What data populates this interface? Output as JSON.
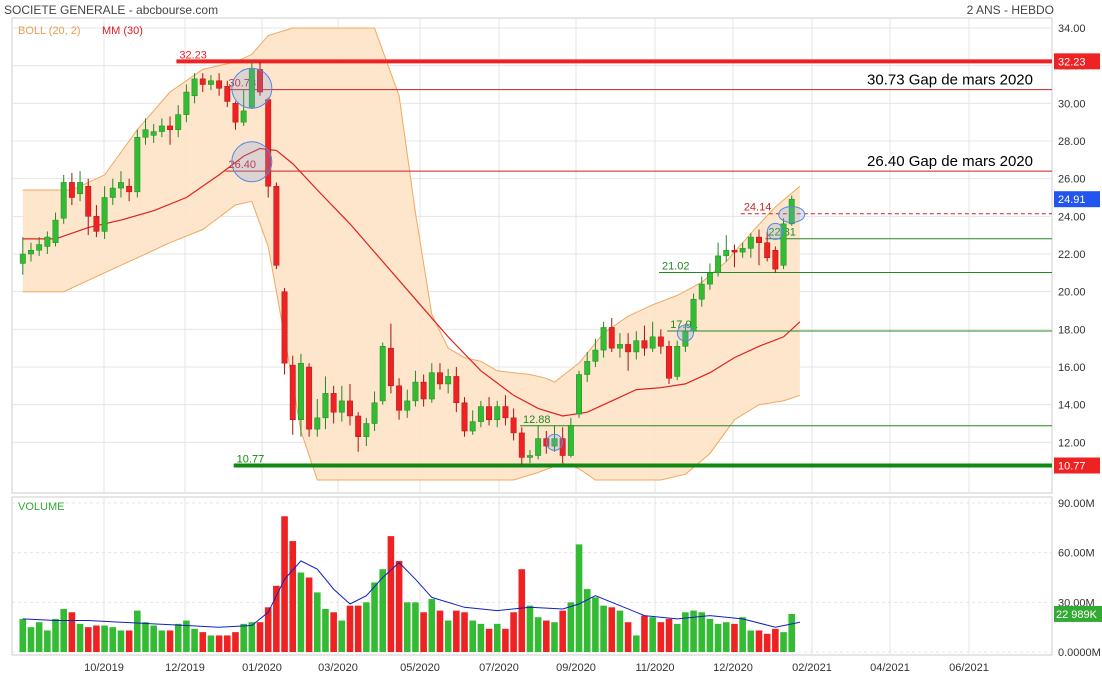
{
  "header": {
    "title": "SOCIETE GENERALE - abcbourse.com",
    "period": "2 ANS - HEBDO"
  },
  "legend": {
    "boll": "BOLL (20, 2)",
    "mm": "MM (30)",
    "volume": "VOLUME"
  },
  "colors": {
    "up": "#33bb33",
    "down": "#ee2222",
    "ma": "#e02020",
    "band_fill": "#fde3c6",
    "band_line": "#f0a860",
    "volume_ma": "#1020c0",
    "price_tag": "#2255ee"
  },
  "chart_data": {
    "type": "candlestick",
    "x_labels": [
      "10/2019",
      "12/2019",
      "01/2020",
      "03/2020",
      "05/2020",
      "07/2020",
      "09/2020",
      "11/2020",
      "12/2020",
      "02/2021",
      "04/2021",
      "06/2021"
    ],
    "price_axis": {
      "ticks": [
        "34.00",
        "32.00",
        "30.00",
        "28.00",
        "26.00",
        "24.00",
        "22.00",
        "20.00",
        "18.00",
        "16.00",
        "14.00",
        "12.00"
      ],
      "tick_values": [
        34,
        32,
        30,
        28,
        26,
        24,
        22,
        20,
        18,
        16,
        14,
        12
      ],
      "range": [
        10,
        34
      ]
    },
    "volume_axis": {
      "ticks": [
        "90.00M",
        "60.00M",
        "30.00M",
        "0.0000M"
      ],
      "tick_values": [
        90,
        60,
        30,
        0
      ],
      "range": [
        0,
        90
      ]
    },
    "last_price": "24.91",
    "last_volume": "22 989K",
    "price_tags": [
      {
        "label": "32.23",
        "value": 32.23,
        "color": "#ee2222"
      },
      {
        "label": "10.77",
        "value": 10.77,
        "color": "#ee2222"
      }
    ],
    "levels": [
      {
        "label": "32.23",
        "value": 32.23,
        "color": "#ee2222",
        "thick": true,
        "label_week": 20
      },
      {
        "label": "30.73",
        "value": 30.73,
        "color": "#cc2222",
        "thick": false,
        "label_week": 26,
        "annotation": "30.73 Gap de mars 2020"
      },
      {
        "label": "26.40",
        "value": 26.4,
        "color": "#cc2222",
        "thick": false,
        "label_week": 26,
        "annotation": "26.40 Gap de mars 2020"
      },
      {
        "label": "24.14",
        "value": 24.14,
        "color": "#cc2222",
        "thick": false,
        "dashed": true,
        "label_week": 89
      },
      {
        "label": "22.81",
        "value": 22.81,
        "color": "#228822",
        "thick": false,
        "label_week": 92
      },
      {
        "label": "21.02",
        "value": 21.02,
        "color": "#228822",
        "thick": false,
        "label_week": 79
      },
      {
        "label": "17.91",
        "value": 17.91,
        "color": "#228822",
        "thick": false,
        "label_week": 80
      },
      {
        "label": "12.88",
        "value": 12.88,
        "color": "#228822",
        "thick": false,
        "label_week": 62
      },
      {
        "label": "10.77",
        "value": 10.77,
        "color": "#118811",
        "thick": true,
        "label_week": 27
      }
    ],
    "circles": [
      {
        "week": 28,
        "price": 30.8
      },
      {
        "week": 28,
        "price": 26.9
      },
      {
        "week": 65,
        "price": 12.0
      },
      {
        "week": 81,
        "price": 17.8
      },
      {
        "week": 92,
        "price": 23.2
      },
      {
        "week": 94,
        "price": 24.1
      }
    ],
    "candles": [
      {
        "o": 21.5,
        "c": 22.0,
        "h": 22.9,
        "l": 20.9,
        "v": 20
      },
      {
        "o": 22.0,
        "c": 22.2,
        "h": 22.6,
        "l": 21.6,
        "v": 15
      },
      {
        "o": 22.2,
        "c": 22.5,
        "h": 22.9,
        "l": 21.9,
        "v": 18
      },
      {
        "o": 22.4,
        "c": 22.9,
        "h": 23.2,
        "l": 22.0,
        "v": 13
      },
      {
        "o": 22.6,
        "c": 23.8,
        "h": 24.2,
        "l": 22.4,
        "v": 20
      },
      {
        "o": 23.9,
        "c": 25.8,
        "h": 26.2,
        "l": 23.6,
        "v": 26
      },
      {
        "o": 25.8,
        "c": 25.0,
        "h": 26.3,
        "l": 24.6,
        "v": 24
      },
      {
        "o": 25.2,
        "c": 25.8,
        "h": 26.4,
        "l": 24.8,
        "v": 17
      },
      {
        "o": 25.6,
        "c": 24.0,
        "h": 26.0,
        "l": 23.0,
        "v": 15
      },
      {
        "o": 24.0,
        "c": 23.2,
        "h": 24.6,
        "l": 22.9,
        "v": 16
      },
      {
        "o": 23.2,
        "c": 25.0,
        "h": 25.6,
        "l": 22.8,
        "v": 16
      },
      {
        "o": 25.0,
        "c": 25.5,
        "h": 26.0,
        "l": 24.6,
        "v": 15
      },
      {
        "o": 25.5,
        "c": 25.8,
        "h": 26.4,
        "l": 25.0,
        "v": 13
      },
      {
        "o": 25.6,
        "c": 25.3,
        "h": 26.0,
        "l": 24.8,
        "v": 13
      },
      {
        "o": 25.3,
        "c": 28.2,
        "h": 28.6,
        "l": 25.0,
        "v": 25
      },
      {
        "o": 28.2,
        "c": 28.6,
        "h": 29.2,
        "l": 27.8,
        "v": 18
      },
      {
        "o": 28.3,
        "c": 28.5,
        "h": 28.9,
        "l": 27.9,
        "v": 16
      },
      {
        "o": 28.5,
        "c": 28.8,
        "h": 29.2,
        "l": 28.2,
        "v": 13
      },
      {
        "o": 28.8,
        "c": 28.6,
        "h": 29.3,
        "l": 27.8,
        "v": 13
      },
      {
        "o": 28.6,
        "c": 29.4,
        "h": 29.9,
        "l": 28.2,
        "v": 17
      },
      {
        "o": 29.4,
        "c": 30.6,
        "h": 31.0,
        "l": 29.0,
        "v": 19
      },
      {
        "o": 30.4,
        "c": 31.3,
        "h": 31.6,
        "l": 30.0,
        "v": 14
      },
      {
        "o": 31.3,
        "c": 31.0,
        "h": 31.6,
        "l": 30.6,
        "v": 12
      },
      {
        "o": 31.0,
        "c": 31.2,
        "h": 31.5,
        "l": 30.7,
        "v": 10
      },
      {
        "o": 31.2,
        "c": 30.8,
        "h": 31.6,
        "l": 30.4,
        "v": 10
      },
      {
        "o": 30.9,
        "c": 30.1,
        "h": 31.2,
        "l": 29.8,
        "v": 10
      },
      {
        "o": 30.0,
        "c": 29.0,
        "h": 30.1,
        "l": 28.6,
        "v": 12
      },
      {
        "o": 29.0,
        "c": 29.6,
        "h": 30.7,
        "l": 28.8,
        "v": 17
      },
      {
        "o": 29.8,
        "c": 31.8,
        "h": 32.2,
        "l": 29.7,
        "v": 18
      },
      {
        "o": 31.8,
        "c": 30.6,
        "h": 32.2,
        "l": 30.4,
        "v": 18
      },
      {
        "o": 30.2,
        "c": 25.6,
        "h": 30.3,
        "l": 25.0,
        "v": 27
      },
      {
        "o": 25.6,
        "c": 21.4,
        "h": 25.8,
        "l": 21.2,
        "v": 40
      },
      {
        "o": 20.0,
        "c": 16.2,
        "h": 20.2,
        "l": 15.6,
        "v": 82
      },
      {
        "o": 16.1,
        "c": 13.2,
        "h": 16.6,
        "l": 12.4,
        "v": 67
      },
      {
        "o": 13.2,
        "c": 16.2,
        "h": 16.7,
        "l": 12.3,
        "v": 48
      },
      {
        "o": 16.0,
        "c": 12.7,
        "h": 16.2,
        "l": 12.3,
        "v": 45
      },
      {
        "o": 12.7,
        "c": 13.3,
        "h": 14.3,
        "l": 12.3,
        "v": 36
      },
      {
        "o": 13.3,
        "c": 14.6,
        "h": 15.5,
        "l": 12.7,
        "v": 26
      },
      {
        "o": 14.6,
        "c": 13.6,
        "h": 15.0,
        "l": 13.0,
        "v": 24
      },
      {
        "o": 13.6,
        "c": 14.2,
        "h": 15.0,
        "l": 13.1,
        "v": 19
      },
      {
        "o": 14.2,
        "c": 13.4,
        "h": 15.1,
        "l": 12.9,
        "v": 28
      },
      {
        "o": 13.4,
        "c": 12.3,
        "h": 13.6,
        "l": 11.5,
        "v": 28
      },
      {
        "o": 12.3,
        "c": 13.0,
        "h": 13.3,
        "l": 11.8,
        "v": 30
      },
      {
        "o": 13.0,
        "c": 14.1,
        "h": 14.7,
        "l": 12.6,
        "v": 42
      },
      {
        "o": 14.2,
        "c": 17.1,
        "h": 17.3,
        "l": 14.0,
        "v": 50
      },
      {
        "o": 17.0,
        "c": 15.0,
        "h": 18.3,
        "l": 14.6,
        "v": 70
      },
      {
        "o": 15.0,
        "c": 13.7,
        "h": 15.4,
        "l": 13.2,
        "v": 55
      },
      {
        "o": 13.7,
        "c": 14.2,
        "h": 14.8,
        "l": 13.3,
        "v": 30
      },
      {
        "o": 14.2,
        "c": 15.2,
        "h": 15.8,
        "l": 13.9,
        "v": 30
      },
      {
        "o": 15.2,
        "c": 14.3,
        "h": 15.6,
        "l": 13.9,
        "v": 24
      },
      {
        "o": 14.3,
        "c": 15.7,
        "h": 16.2,
        "l": 14.1,
        "v": 32
      },
      {
        "o": 15.7,
        "c": 15.1,
        "h": 16.2,
        "l": 14.8,
        "v": 25
      },
      {
        "o": 15.1,
        "c": 15.5,
        "h": 15.9,
        "l": 14.6,
        "v": 19
      },
      {
        "o": 15.5,
        "c": 14.1,
        "h": 16.0,
        "l": 13.6,
        "v": 25
      },
      {
        "o": 14.1,
        "c": 12.6,
        "h": 14.4,
        "l": 12.3,
        "v": 24
      },
      {
        "o": 12.6,
        "c": 13.1,
        "h": 13.7,
        "l": 12.4,
        "v": 19
      },
      {
        "o": 13.1,
        "c": 13.9,
        "h": 14.2,
        "l": 12.8,
        "v": 17
      },
      {
        "o": 13.9,
        "c": 13.2,
        "h": 14.4,
        "l": 12.9,
        "v": 14
      },
      {
        "o": 13.2,
        "c": 13.9,
        "h": 14.2,
        "l": 12.8,
        "v": 17
      },
      {
        "o": 13.9,
        "c": 13.3,
        "h": 14.5,
        "l": 12.9,
        "v": 14
      },
      {
        "o": 13.3,
        "c": 12.5,
        "h": 13.8,
        "l": 12.1,
        "v": 24
      },
      {
        "o": 12.5,
        "c": 11.2,
        "h": 12.8,
        "l": 10.8,
        "v": 50
      },
      {
        "o": 11.2,
        "c": 11.3,
        "h": 11.6,
        "l": 10.9,
        "v": 28
      },
      {
        "o": 11.3,
        "c": 12.2,
        "h": 12.9,
        "l": 11.1,
        "v": 21
      },
      {
        "o": 12.2,
        "c": 11.8,
        "h": 12.6,
        "l": 11.4,
        "v": 19
      },
      {
        "o": 11.8,
        "c": 12.2,
        "h": 12.9,
        "l": 11.5,
        "v": 18
      },
      {
        "o": 12.2,
        "c": 11.3,
        "h": 12.8,
        "l": 10.9,
        "v": 25
      },
      {
        "o": 11.3,
        "c": 12.9,
        "h": 13.3,
        "l": 11.2,
        "v": 30
      },
      {
        "o": 13.5,
        "c": 15.6,
        "h": 15.8,
        "l": 13.3,
        "v": 65
      },
      {
        "o": 15.6,
        "c": 16.3,
        "h": 16.8,
        "l": 15.2,
        "v": 38
      },
      {
        "o": 16.3,
        "c": 16.9,
        "h": 17.5,
        "l": 16.0,
        "v": 33
      },
      {
        "o": 16.9,
        "c": 18.1,
        "h": 18.4,
        "l": 16.5,
        "v": 28
      },
      {
        "o": 18.1,
        "c": 17.0,
        "h": 18.6,
        "l": 16.8,
        "v": 27
      },
      {
        "o": 17.0,
        "c": 17.2,
        "h": 17.8,
        "l": 16.5,
        "v": 25
      },
      {
        "o": 17.2,
        "c": 16.8,
        "h": 17.8,
        "l": 15.8,
        "v": 18
      },
      {
        "o": 16.8,
        "c": 17.4,
        "h": 17.9,
        "l": 16.4,
        "v": 10
      },
      {
        "o": 17.4,
        "c": 17.0,
        "h": 18.2,
        "l": 16.6,
        "v": 22
      },
      {
        "o": 17.0,
        "c": 17.6,
        "h": 18.4,
        "l": 16.8,
        "v": 21
      },
      {
        "o": 17.6,
        "c": 17.1,
        "h": 18.0,
        "l": 16.7,
        "v": 18
      },
      {
        "o": 17.1,
        "c": 15.4,
        "h": 17.4,
        "l": 15.1,
        "v": 20
      },
      {
        "o": 15.5,
        "c": 17.1,
        "h": 17.4,
        "l": 15.3,
        "v": 17
      },
      {
        "o": 17.1,
        "c": 17.9,
        "h": 18.3,
        "l": 16.8,
        "v": 24
      },
      {
        "o": 17.9,
        "c": 19.6,
        "h": 19.9,
        "l": 17.8,
        "v": 25
      },
      {
        "o": 19.6,
        "c": 20.4,
        "h": 20.8,
        "l": 19.2,
        "v": 24
      },
      {
        "o": 20.4,
        "c": 21.0,
        "h": 21.5,
        "l": 20.1,
        "v": 20
      },
      {
        "o": 21.0,
        "c": 21.9,
        "h": 22.6,
        "l": 20.8,
        "v": 17
      },
      {
        "o": 21.9,
        "c": 22.2,
        "h": 23.0,
        "l": 21.6,
        "v": 18
      },
      {
        "o": 22.2,
        "c": 22.1,
        "h": 22.5,
        "l": 21.3,
        "v": 17
      },
      {
        "o": 22.1,
        "c": 22.3,
        "h": 22.6,
        "l": 21.8,
        "v": 21
      },
      {
        "o": 22.3,
        "c": 22.9,
        "h": 23.1,
        "l": 21.8,
        "v": 13
      },
      {
        "o": 22.9,
        "c": 22.6,
        "h": 23.3,
        "l": 21.4,
        "v": 13
      },
      {
        "o": 22.6,
        "c": 21.8,
        "h": 23.2,
        "l": 21.6,
        "v": 11
      },
      {
        "o": 22.2,
        "c": 21.2,
        "h": 22.4,
        "l": 21.0,
        "v": 14
      },
      {
        "o": 21.4,
        "c": 23.6,
        "h": 23.9,
        "l": 21.2,
        "v": 12
      },
      {
        "o": 23.6,
        "c": 24.91,
        "h": 25.1,
        "l": 23.5,
        "v": 22.989
      }
    ],
    "bollinger": {
      "upper": [
        [
          0,
          25.4
        ],
        [
          6,
          25.4
        ],
        [
          10,
          26.2
        ],
        [
          14,
          28.6
        ],
        [
          18,
          30.6
        ],
        [
          22,
          31.8
        ],
        [
          26,
          32.2
        ],
        [
          28,
          32.6
        ],
        [
          30,
          33.6
        ],
        [
          33,
          34.0
        ],
        [
          36,
          34.0
        ],
        [
          40,
          34.0
        ],
        [
          43,
          34.0
        ],
        [
          46,
          30.4
        ],
        [
          48,
          24.2
        ],
        [
          50,
          18.8
        ],
        [
          52,
          17.0
        ],
        [
          54,
          16.5
        ],
        [
          56,
          16.3
        ],
        [
          58,
          15.8
        ],
        [
          60,
          15.7
        ],
        [
          62,
          15.6
        ],
        [
          64,
          15.4
        ],
        [
          65,
          15.2
        ],
        [
          68,
          16.2
        ],
        [
          71,
          17.8
        ],
        [
          74,
          18.7
        ],
        [
          77,
          19.3
        ],
        [
          80,
          19.8
        ],
        [
          83,
          20.5
        ],
        [
          86,
          21.6
        ],
        [
          89,
          23.1
        ],
        [
          92,
          24.5
        ],
        [
          95,
          25.6
        ]
      ],
      "lower": [
        [
          0,
          20.0
        ],
        [
          5,
          20.0
        ],
        [
          10,
          21.0
        ],
        [
          14,
          21.8
        ],
        [
          18,
          22.6
        ],
        [
          22,
          23.3
        ],
        [
          26,
          24.6
        ],
        [
          28,
          24.8
        ],
        [
          30,
          22.4
        ],
        [
          32,
          17.6
        ],
        [
          34,
          12.6
        ],
        [
          36,
          10.0
        ],
        [
          40,
          10.0
        ],
        [
          45,
          10.0
        ],
        [
          50,
          10.0
        ],
        [
          55,
          10.0
        ],
        [
          60,
          10.0
        ],
        [
          63,
          10.4
        ],
        [
          66,
          10.9
        ],
        [
          68,
          10.6
        ],
        [
          70,
          10.0
        ],
        [
          74,
          10.0
        ],
        [
          78,
          10.0
        ],
        [
          81,
          10.3
        ],
        [
          84,
          11.4
        ],
        [
          87,
          13.2
        ],
        [
          90,
          14.0
        ],
        [
          93,
          14.2
        ],
        [
          95,
          14.5
        ]
      ]
    },
    "moving_average": [
      [
        0,
        22.8
      ],
      [
        4,
        22.8
      ],
      [
        8,
        23.4
      ],
      [
        12,
        23.8
      ],
      [
        16,
        24.3
      ],
      [
        20,
        25.0
      ],
      [
        24,
        26.2
      ],
      [
        27,
        27.2
      ],
      [
        29,
        27.6
      ],
      [
        31,
        27.5
      ],
      [
        33,
        26.8
      ],
      [
        36,
        25.4
      ],
      [
        40,
        23.6
      ],
      [
        44,
        21.6
      ],
      [
        48,
        19.6
      ],
      [
        52,
        17.6
      ],
      [
        56,
        15.8
      ],
      [
        60,
        14.5
      ],
      [
        63,
        13.8
      ],
      [
        66,
        13.4
      ],
      [
        69,
        13.6
      ],
      [
        72,
        14.2
      ],
      [
        75,
        14.8
      ],
      [
        78,
        14.9
      ],
      [
        81,
        15.1
      ],
      [
        84,
        15.7
      ],
      [
        87,
        16.5
      ],
      [
        90,
        17.1
      ],
      [
        93,
        17.6
      ],
      [
        95,
        18.4
      ]
    ],
    "volume_moving_average": [
      [
        0,
        20
      ],
      [
        4,
        19
      ],
      [
        8,
        19
      ],
      [
        12,
        18
      ],
      [
        16,
        17
      ],
      [
        20,
        16
      ],
      [
        24,
        15
      ],
      [
        28,
        16
      ],
      [
        30,
        24
      ],
      [
        32,
        44
      ],
      [
        34,
        55
      ],
      [
        36,
        50
      ],
      [
        38,
        38
      ],
      [
        40,
        29
      ],
      [
        42,
        34
      ],
      [
        44,
        45
      ],
      [
        46,
        54
      ],
      [
        48,
        44
      ],
      [
        50,
        33
      ],
      [
        54,
        27
      ],
      [
        58,
        25
      ],
      [
        62,
        27
      ],
      [
        66,
        26
      ],
      [
        68,
        29
      ],
      [
        70,
        34
      ],
      [
        72,
        30
      ],
      [
        76,
        22
      ],
      [
        80,
        20
      ],
      [
        84,
        22
      ],
      [
        88,
        20
      ],
      [
        92,
        15
      ],
      [
        95,
        18
      ]
    ]
  }
}
